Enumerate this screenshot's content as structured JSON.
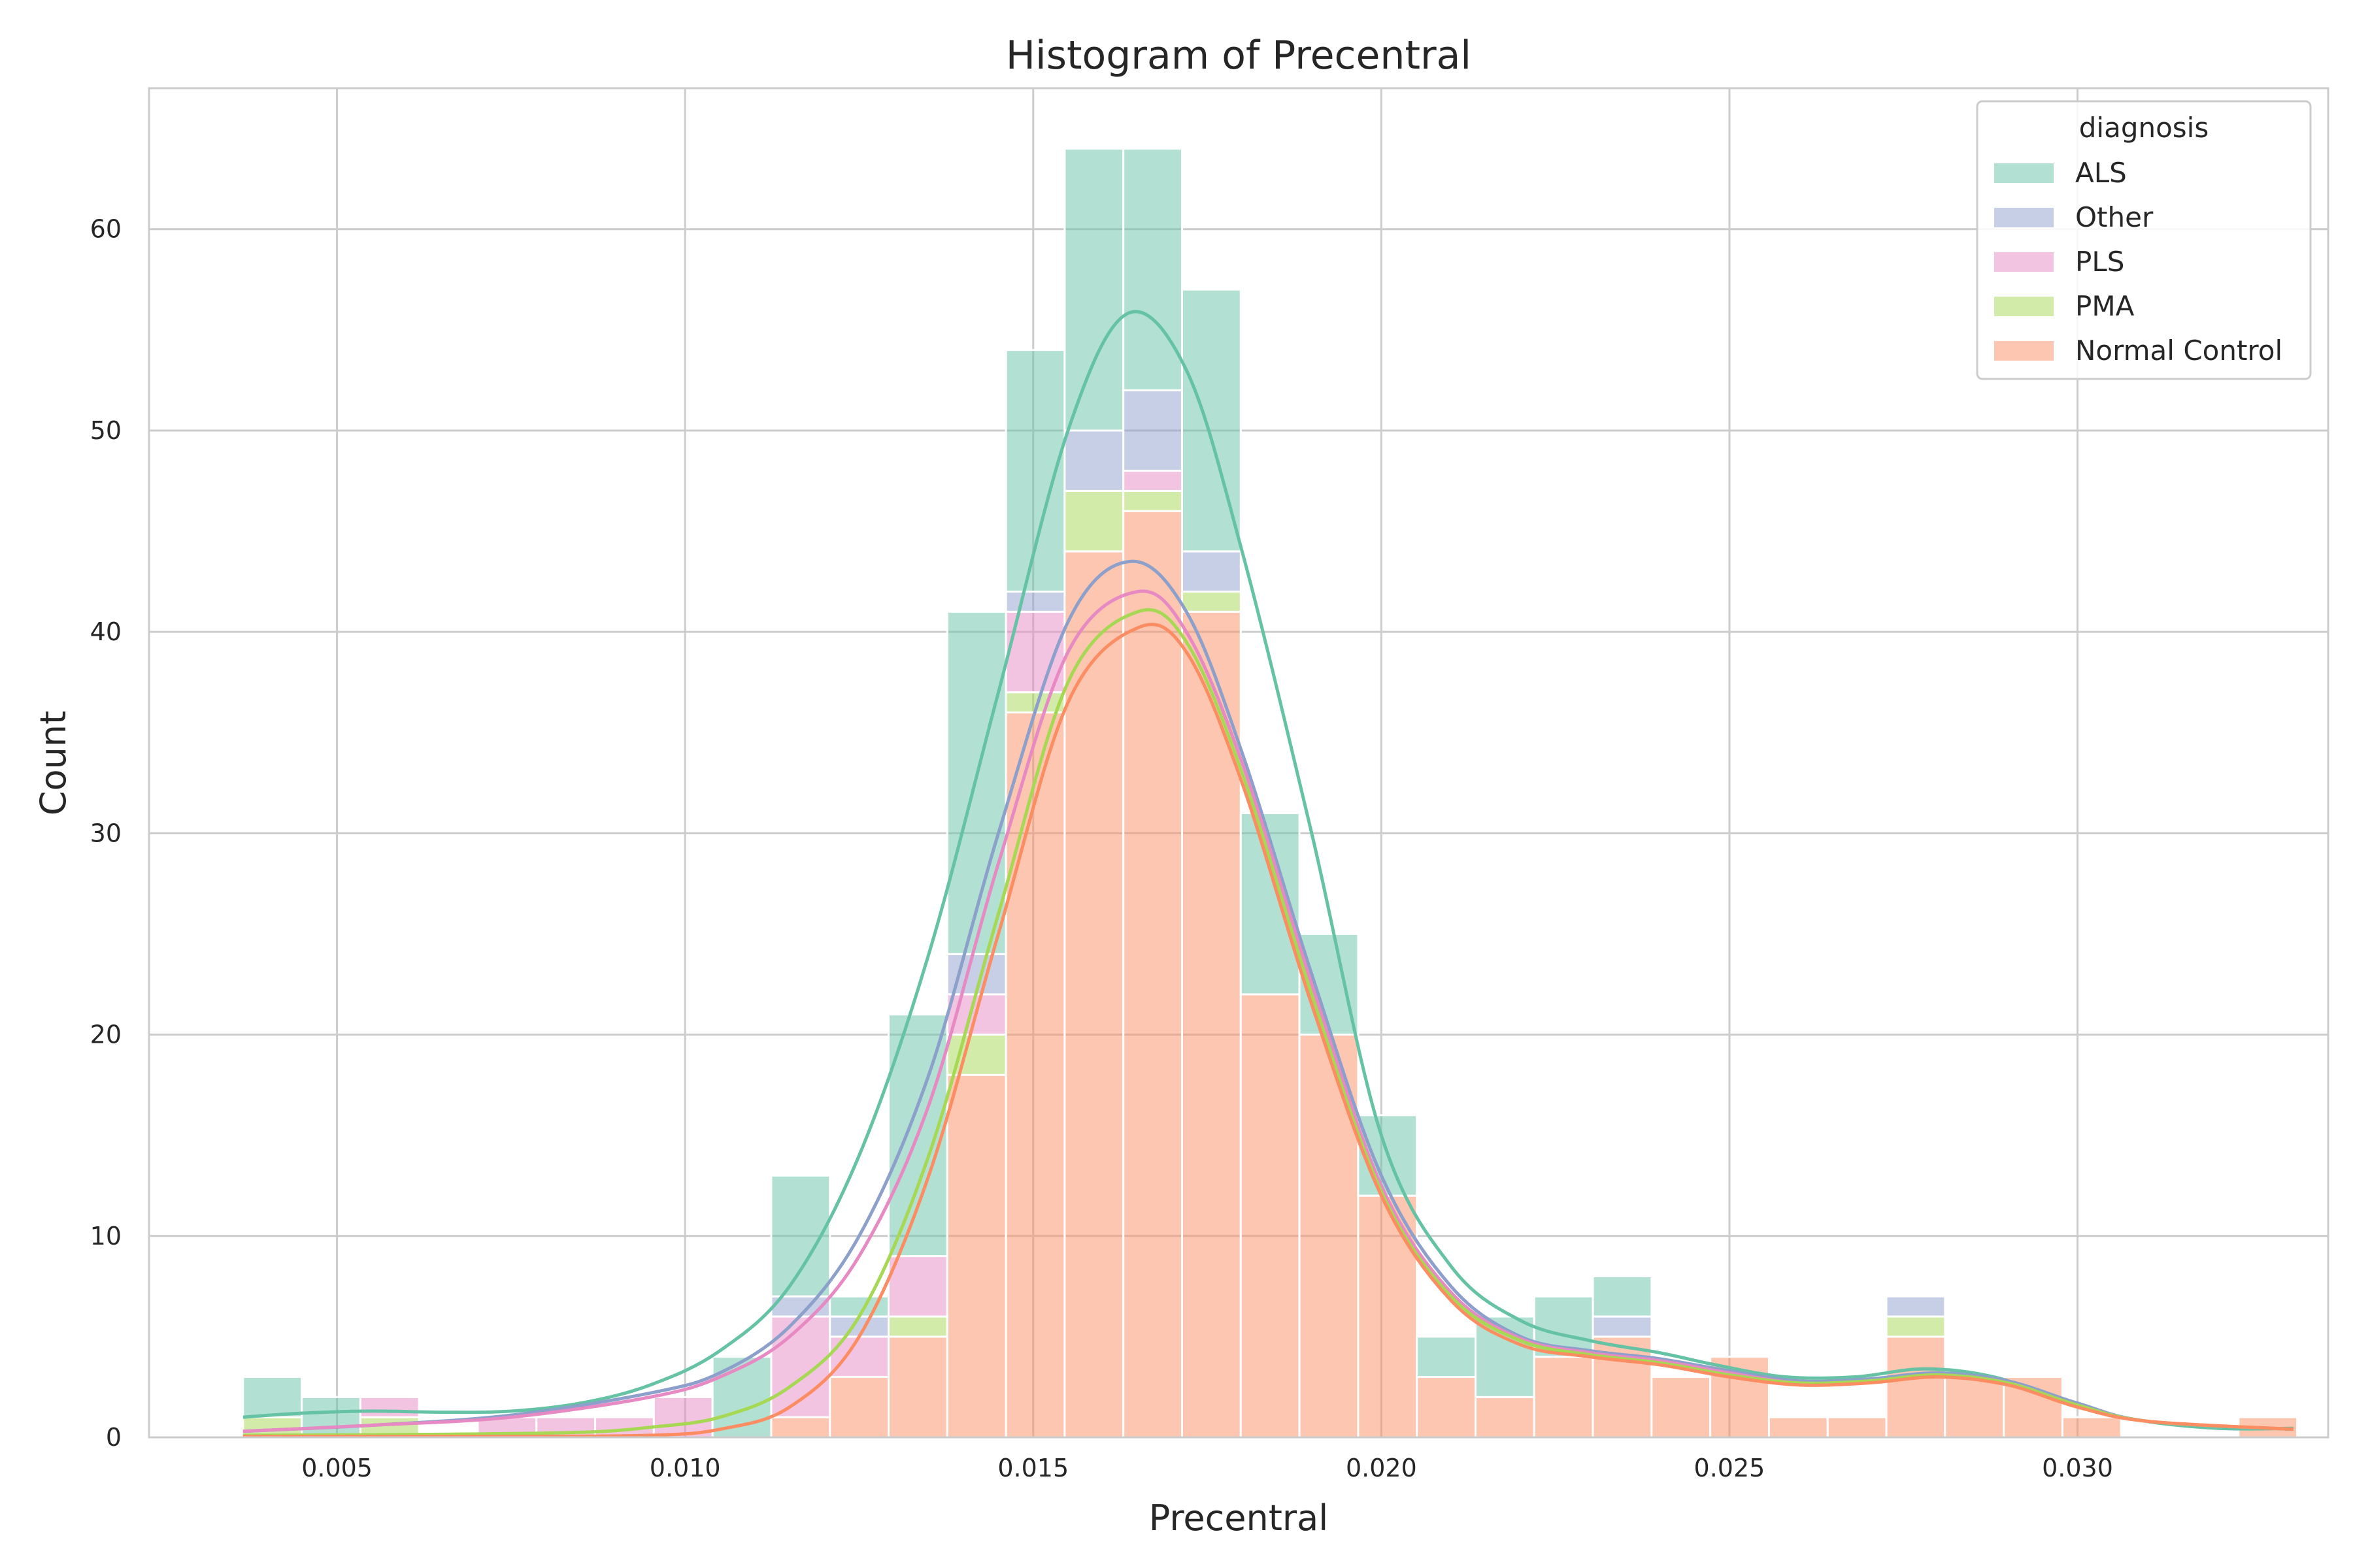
{
  "chart_data": {
    "type": "bar",
    "title": "Histogram of Precentral",
    "xlabel": "Precentral",
    "ylabel": "Count",
    "xlim": [
      0.0023,
      0.0336
    ],
    "ylim": [
      0,
      67
    ],
    "xticks": [
      0.005,
      0.01,
      0.015,
      0.02,
      0.025,
      0.03
    ],
    "xtick_labels": [
      "0.005",
      "0.010",
      "0.015",
      "0.020",
      "0.025",
      "0.030"
    ],
    "yticks": [
      0,
      10,
      20,
      30,
      40,
      50,
      60
    ],
    "ytick_labels": [
      "0",
      "10",
      "20",
      "30",
      "40",
      "50",
      "60"
    ],
    "grid": true,
    "stacked": true,
    "bin_start": 0.00365,
    "bin_width": 0.000843,
    "legend": {
      "title": "diagnosis",
      "placement": "top-right"
    },
    "series": [
      {
        "name": "Normal Control",
        "color": "#fc8d62",
        "values": [
          0,
          0,
          0,
          0,
          0,
          0,
          0,
          0,
          0,
          1,
          3,
          5,
          18,
          36,
          44,
          46,
          41,
          22,
          20,
          12,
          3,
          2,
          4,
          5,
          3,
          4,
          1,
          1,
          5,
          3,
          3,
          1,
          0,
          0,
          1
        ]
      },
      {
        "name": "PMA",
        "color": "#a6d854",
        "values": [
          1,
          0,
          1,
          0,
          0,
          0,
          0,
          0,
          0,
          0,
          0,
          1,
          2,
          1,
          3,
          1,
          1,
          0,
          0,
          0,
          0,
          0,
          0,
          0,
          0,
          0,
          0,
          0,
          1,
          0,
          0,
          0,
          0,
          0,
          0
        ]
      },
      {
        "name": "PLS",
        "color": "#e78ac3",
        "values": [
          0,
          0,
          1,
          0,
          1,
          1,
          1,
          2,
          0,
          5,
          2,
          3,
          2,
          4,
          0,
          1,
          0,
          0,
          0,
          0,
          0,
          0,
          0,
          0,
          0,
          0,
          0,
          0,
          0,
          0,
          0,
          0,
          0,
          0,
          0
        ]
      },
      {
        "name": "Other",
        "color": "#8da0cb",
        "values": [
          0,
          0,
          0,
          0,
          0,
          0,
          0,
          0,
          0,
          1,
          1,
          0,
          2,
          1,
          3,
          4,
          2,
          0,
          0,
          0,
          0,
          0,
          0,
          1,
          0,
          0,
          0,
          0,
          1,
          0,
          0,
          0,
          0,
          0,
          0
        ]
      },
      {
        "name": "ALS",
        "color": "#66c2a5",
        "values": [
          2,
          2,
          0,
          0,
          0,
          0,
          0,
          0,
          4,
          6,
          1,
          12,
          17,
          12,
          14,
          12,
          13,
          9,
          5,
          4,
          2,
          4,
          3,
          2,
          0,
          0,
          0,
          0,
          0,
          0,
          0,
          0,
          0,
          0,
          0
        ]
      }
    ],
    "legend_order": [
      "ALS",
      "Other",
      "PLS",
      "PMA",
      "Normal Control"
    ],
    "kde": [
      {
        "name": "ALS",
        "color": "#66c2a5",
        "points": [
          [
            0.00365,
            1.0
          ],
          [
            0.0045,
            1.2
          ],
          [
            0.0055,
            1.3
          ],
          [
            0.0065,
            1.25
          ],
          [
            0.0075,
            1.3
          ],
          [
            0.0085,
            1.7
          ],
          [
            0.0095,
            2.6
          ],
          [
            0.0105,
            4.3
          ],
          [
            0.0115,
            7.5
          ],
          [
            0.0125,
            14
          ],
          [
            0.0135,
            24
          ],
          [
            0.0145,
            37
          ],
          [
            0.0155,
            50
          ],
          [
            0.01635,
            55.8
          ],
          [
            0.0172,
            53
          ],
          [
            0.018,
            44
          ],
          [
            0.019,
            30
          ],
          [
            0.02,
            15
          ],
          [
            0.021,
            8.5
          ],
          [
            0.022,
            5.8
          ],
          [
            0.023,
            4.8
          ],
          [
            0.024,
            4.2
          ],
          [
            0.0248,
            3.6
          ],
          [
            0.0258,
            3.0
          ],
          [
            0.0268,
            3.0
          ],
          [
            0.0278,
            3.4
          ],
          [
            0.0288,
            3.0
          ],
          [
            0.0298,
            1.8
          ],
          [
            0.0308,
            0.9
          ],
          [
            0.032,
            0.45
          ],
          [
            0.0331,
            0.45
          ]
        ]
      },
      {
        "name": "Other",
        "color": "#8da0cb",
        "points": [
          [
            0.00365,
            0.3
          ],
          [
            0.0055,
            0.6
          ],
          [
            0.0075,
            1.1
          ],
          [
            0.0095,
            2.2
          ],
          [
            0.0105,
            3.2
          ],
          [
            0.0115,
            5.5
          ],
          [
            0.0125,
            10
          ],
          [
            0.0135,
            18
          ],
          [
            0.0145,
            30
          ],
          [
            0.0155,
            40.5
          ],
          [
            0.0164,
            43.5
          ],
          [
            0.0172,
            41
          ],
          [
            0.018,
            34
          ],
          [
            0.019,
            23
          ],
          [
            0.02,
            13
          ],
          [
            0.021,
            7.5
          ],
          [
            0.022,
            5
          ],
          [
            0.023,
            4.3
          ],
          [
            0.024,
            3.9
          ],
          [
            0.025,
            3.3
          ],
          [
            0.026,
            2.8
          ],
          [
            0.027,
            2.9
          ],
          [
            0.028,
            3.2
          ],
          [
            0.029,
            2.8
          ],
          [
            0.03,
            1.7
          ],
          [
            0.031,
            0.8
          ],
          [
            0.0331,
            0.4
          ]
        ]
      },
      {
        "name": "PLS",
        "color": "#e78ac3",
        "points": [
          [
            0.00365,
            0.3
          ],
          [
            0.0055,
            0.6
          ],
          [
            0.0075,
            1.0
          ],
          [
            0.0095,
            2.0
          ],
          [
            0.0105,
            3.0
          ],
          [
            0.0115,
            5.0
          ],
          [
            0.0125,
            9.0
          ],
          [
            0.0135,
            16.5
          ],
          [
            0.0145,
            28.5
          ],
          [
            0.0155,
            39
          ],
          [
            0.0165,
            42
          ],
          [
            0.0172,
            40
          ],
          [
            0.018,
            33.5
          ],
          [
            0.019,
            22.5
          ],
          [
            0.02,
            12.5
          ],
          [
            0.021,
            7.2
          ],
          [
            0.022,
            4.9
          ],
          [
            0.023,
            4.2
          ],
          [
            0.024,
            3.8
          ],
          [
            0.025,
            3.2
          ],
          [
            0.026,
            2.7
          ],
          [
            0.027,
            2.8
          ],
          [
            0.028,
            3.1
          ],
          [
            0.029,
            2.7
          ],
          [
            0.03,
            1.6
          ],
          [
            0.031,
            0.8
          ],
          [
            0.0331,
            0.4
          ]
        ]
      },
      {
        "name": "PMA",
        "color": "#a6d854",
        "points": [
          [
            0.00365,
            0.1
          ],
          [
            0.0065,
            0.15
          ],
          [
            0.0085,
            0.25
          ],
          [
            0.0095,
            0.5
          ],
          [
            0.0105,
            1.0
          ],
          [
            0.0115,
            2.5
          ],
          [
            0.0125,
            6
          ],
          [
            0.0135,
            14
          ],
          [
            0.0145,
            26
          ],
          [
            0.0155,
            37.5
          ],
          [
            0.0165,
            41
          ],
          [
            0.0172,
            39.5
          ],
          [
            0.018,
            33
          ],
          [
            0.019,
            22
          ],
          [
            0.02,
            12.2
          ],
          [
            0.021,
            7
          ],
          [
            0.022,
            4.8
          ],
          [
            0.023,
            4.1
          ],
          [
            0.024,
            3.7
          ],
          [
            0.025,
            3.1
          ],
          [
            0.026,
            2.7
          ],
          [
            0.027,
            2.8
          ],
          [
            0.028,
            3.1
          ],
          [
            0.029,
            2.7
          ],
          [
            0.03,
            1.6
          ],
          [
            0.031,
            0.8
          ],
          [
            0.0331,
            0.4
          ]
        ]
      },
      {
        "name": "Normal Control",
        "color": "#fc8d62",
        "points": [
          [
            0.00365,
            0.05
          ],
          [
            0.0075,
            0.05
          ],
          [
            0.0095,
            0.1
          ],
          [
            0.0105,
            0.4
          ],
          [
            0.0115,
            1.5
          ],
          [
            0.0125,
            5
          ],
          [
            0.0135,
            13
          ],
          [
            0.0145,
            25
          ],
          [
            0.0155,
            36.5
          ],
          [
            0.0165,
            40.2
          ],
          [
            0.0172,
            39
          ],
          [
            0.018,
            32.5
          ],
          [
            0.019,
            21.5
          ],
          [
            0.02,
            12
          ],
          [
            0.021,
            6.8
          ],
          [
            0.022,
            4.6
          ],
          [
            0.023,
            4.0
          ],
          [
            0.024,
            3.6
          ],
          [
            0.025,
            3.0
          ],
          [
            0.026,
            2.6
          ],
          [
            0.027,
            2.7
          ],
          [
            0.028,
            3.0
          ],
          [
            0.029,
            2.6
          ],
          [
            0.03,
            1.5
          ],
          [
            0.031,
            0.8
          ],
          [
            0.0331,
            0.4
          ]
        ]
      }
    ]
  }
}
